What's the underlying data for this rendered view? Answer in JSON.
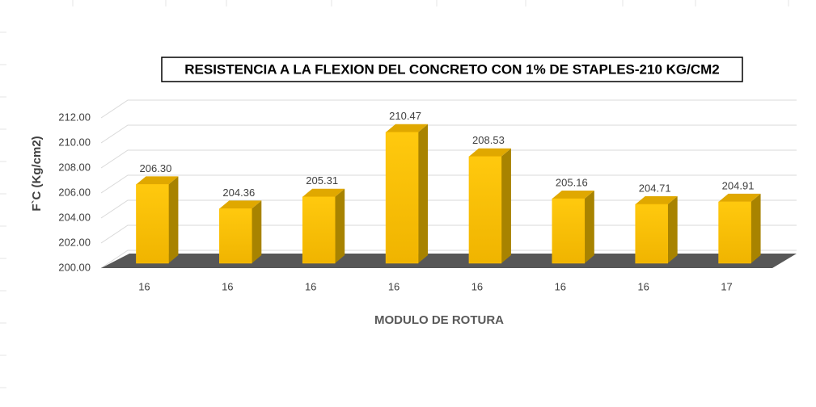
{
  "chart_data": {
    "type": "bar",
    "title": "RESISTENCIA A LA FLEXION DEL CONCRETO CON 1% DE STAPLES-210 KG/CM2",
    "x_label": "MODULO DE ROTURA",
    "y_label": "F`C (Kg/cm2)",
    "categories": [
      "16",
      "16",
      "16",
      "16",
      "16",
      "16",
      "16",
      "17"
    ],
    "values": [
      206.3,
      204.36,
      205.31,
      210.47,
      208.53,
      205.16,
      204.71,
      204.91
    ],
    "value_labels": [
      "206.30",
      "204.36",
      "205.31",
      "210.47",
      "208.53",
      "205.16",
      "204.71",
      "204.91"
    ],
    "color": "#ffc000",
    "ylim": [
      200,
      212
    ],
    "yticks": [
      {
        "value": 200,
        "label": "200.00"
      },
      {
        "value": 202,
        "label": "202.00"
      },
      {
        "value": 204,
        "label": "204.00"
      },
      {
        "value": 206,
        "label": "206.00"
      },
      {
        "value": 208,
        "label": "208.00"
      },
      {
        "value": 210,
        "label": "210.00"
      },
      {
        "value": 212,
        "label": "212.00"
      }
    ],
    "grid": true
  }
}
